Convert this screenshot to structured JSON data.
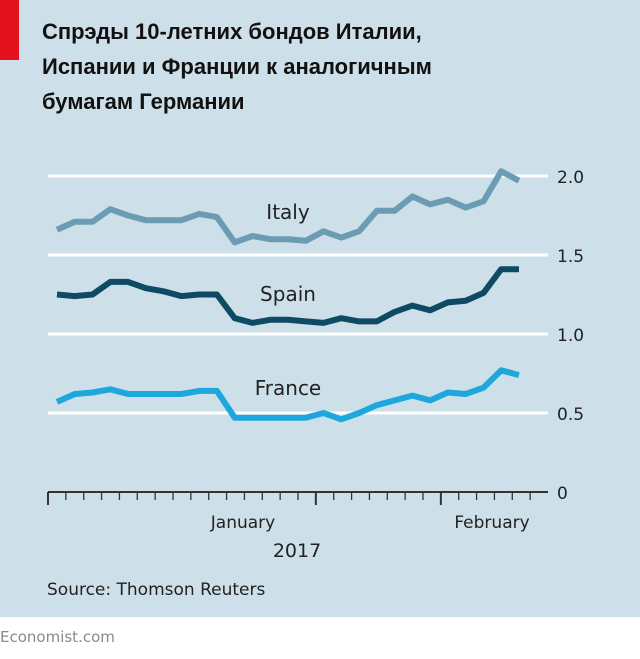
{
  "title_lines": [
    "Спрэды 10-летних бондов Италии,",
    "Испании и Франции к аналогичным",
    "бумагам Германии"
  ],
  "source": "Source: Thomson Reuters",
  "brand": "Economist.com",
  "chart_data": {
    "type": "line",
    "title": "Спрэды 10-летних бондов Италии, Испании и Франции к аналогичным бумагам Германии",
    "xlabel": "2017",
    "ylabel": "",
    "x_tick_labels": [
      "January",
      "February"
    ],
    "year_label": "2017",
    "y_ticks": [
      0,
      0.5,
      1.0,
      1.5,
      2.0
    ],
    "y_tick_labels": [
      "0",
      "0.5",
      "1.0",
      "1.5",
      "2.0"
    ],
    "ylim": [
      0,
      2.0
    ],
    "grid": true,
    "series": [
      {
        "name": "Italy",
        "color": "#6b9cb3",
        "values": [
          1.66,
          1.71,
          1.71,
          1.79,
          1.75,
          1.72,
          1.72,
          1.72,
          1.76,
          1.74,
          1.58,
          1.62,
          1.6,
          1.6,
          1.59,
          1.65,
          1.61,
          1.65,
          1.78,
          1.78,
          1.87,
          1.82,
          1.85,
          1.8,
          1.84,
          2.03,
          1.97
        ]
      },
      {
        "name": "Spain",
        "color": "#0e4a63",
        "values": [
          1.25,
          1.24,
          1.25,
          1.33,
          1.33,
          1.29,
          1.27,
          1.24,
          1.25,
          1.25,
          1.1,
          1.07,
          1.09,
          1.09,
          1.08,
          1.07,
          1.1,
          1.08,
          1.08,
          1.14,
          1.18,
          1.15,
          1.2,
          1.21,
          1.26,
          1.41,
          1.41
        ]
      },
      {
        "name": "France",
        "color": "#1ea7dc",
        "values": [
          0.57,
          0.62,
          0.63,
          0.65,
          0.62,
          0.62,
          0.62,
          0.62,
          0.64,
          0.64,
          0.47,
          0.47,
          0.47,
          0.47,
          0.47,
          0.5,
          0.46,
          0.5,
          0.55,
          0.58,
          0.61,
          0.58,
          0.63,
          0.62,
          0.66,
          0.77,
          0.74
        ]
      }
    ]
  }
}
